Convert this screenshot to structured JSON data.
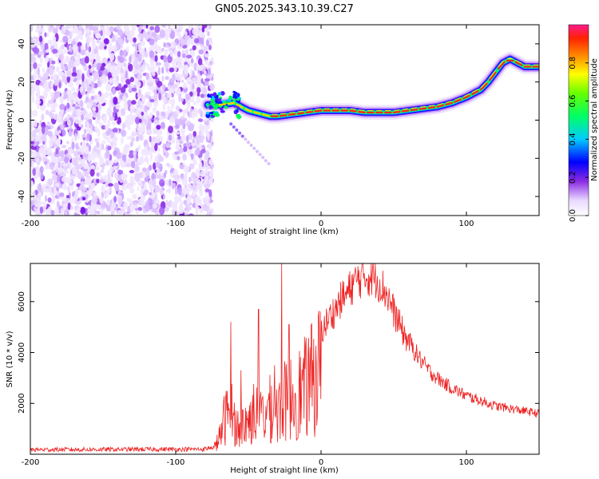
{
  "title": "GN05.2025.343.10.39.C27",
  "chart_data": [
    {
      "type": "heatmap",
      "xlabel": "Height of straight line (km)",
      "ylabel": "Frequency (Hz)",
      "xlim": [
        -200,
        150
      ],
      "ylim": [
        -50,
        50
      ],
      "x_ticks": [
        -200,
        -100,
        0,
        100
      ],
      "y_ticks": [
        -40,
        -20,
        0,
        20,
        40
      ],
      "colorbar": {
        "label": "Normalized spectral amplitude",
        "range": [
          0,
          1
        ],
        "ticks": [
          "0.0",
          "0.2",
          "0.4",
          "0.6",
          "0.8"
        ]
      },
      "noise_region_x": [
        -200,
        -78
      ],
      "ridge": {
        "x": [
          -78,
          -70,
          -60,
          -50,
          -40,
          -35,
          -30,
          -20,
          -10,
          0,
          10,
          20,
          30,
          40,
          50,
          60,
          70,
          80,
          90,
          100,
          110,
          115,
          120,
          125,
          130,
          135,
          140,
          145,
          150
        ],
        "y": [
          8,
          8,
          9,
          5,
          3,
          2,
          2,
          3,
          4,
          5,
          5,
          5,
          4,
          4,
          4,
          5,
          6,
          7,
          9,
          12,
          16,
          20,
          25,
          30,
          32,
          30,
          28,
          28,
          28
        ]
      }
    },
    {
      "type": "line",
      "xlabel": "Height of straight line (km)",
      "ylabel": "SNR (10 * v/v)",
      "xlim": [
        -200,
        150
      ],
      "ylim": [
        0,
        7500
      ],
      "x_ticks": [
        -200,
        -100,
        0,
        100
      ],
      "y_ticks": [
        2000,
        4000,
        6000
      ],
      "color": "#ee2222",
      "envelope": {
        "x": [
          -200,
          -80,
          -74,
          -70,
          -66,
          -62,
          -58,
          -54,
          -50,
          -46,
          -42,
          -38,
          -34,
          -30,
          -26,
          -22,
          -18,
          -14,
          -10,
          -6,
          -2,
          2,
          6,
          10,
          14,
          18,
          22,
          26,
          30,
          34,
          38,
          42,
          46,
          50,
          54,
          58,
          62,
          66,
          70,
          74,
          78,
          82,
          90,
          100,
          110,
          120,
          130,
          140,
          150
        ],
        "y": [
          180,
          200,
          300,
          900,
          2100,
          2400,
          1500,
          1600,
          1800,
          2400,
          2100,
          2300,
          2600,
          2400,
          2900,
          3100,
          3300,
          3500,
          3800,
          4200,
          4700,
          5000,
          5400,
          5700,
          6100,
          6300,
          6700,
          6900,
          7000,
          7000,
          6900,
          6600,
          6200,
          5600,
          5100,
          4600,
          4300,
          3900,
          3600,
          3300,
          3100,
          2900,
          2600,
          2300,
          2100,
          1900,
          1800,
          1700,
          1600
        ]
      },
      "spikes": [
        {
          "x": -62,
          "y": 5200
        },
        {
          "x": -55,
          "y": 3300
        },
        {
          "x": -43,
          "y": 5700
        },
        {
          "x": -32,
          "y": 3500
        },
        {
          "x": -27,
          "y": 7500
        },
        {
          "x": -22,
          "y": 5100
        }
      ]
    }
  ]
}
